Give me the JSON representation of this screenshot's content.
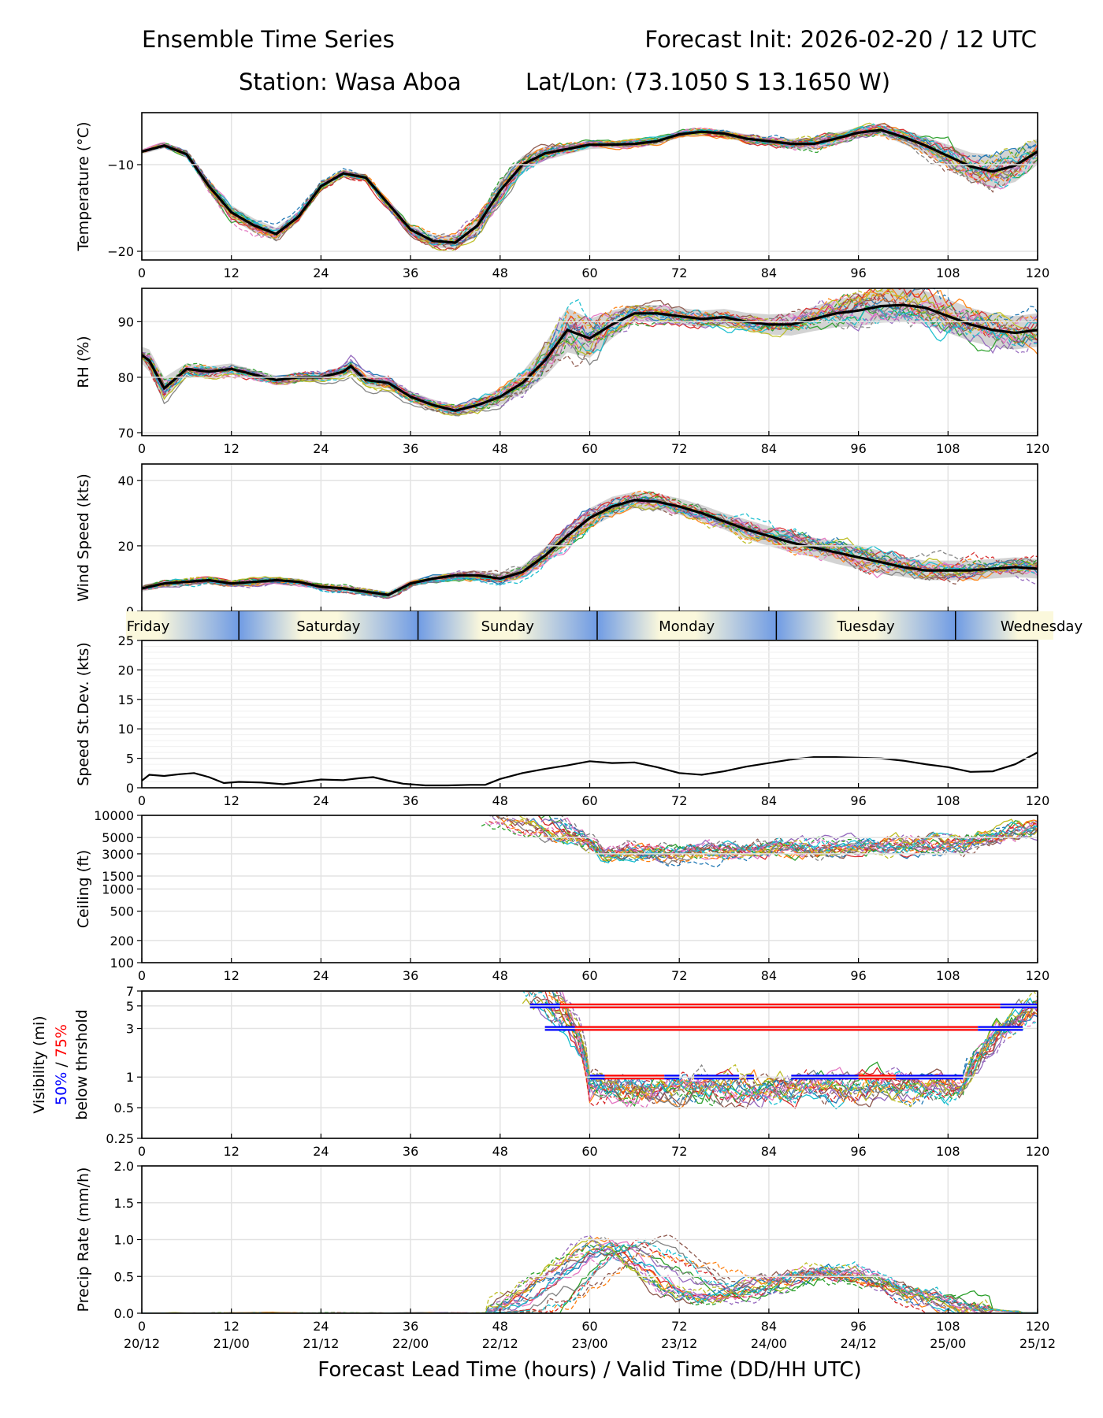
{
  "header": {
    "title_left": "Ensemble Time Series",
    "title_right": "Forecast Init: 2026-02-20 / 12 UTC",
    "station_line": "Station: Wasa Aboa",
    "latlon_line": "Lat/Lon: (73.1050 S 13.1650 W)"
  },
  "x_axis": {
    "lead_ticks": [
      0,
      12,
      24,
      36,
      48,
      60,
      72,
      84,
      96,
      108,
      120
    ],
    "valid_time_labels": [
      "20/12",
      "21/00",
      "21/12",
      "22/00",
      "22/12",
      "23/00",
      "23/12",
      "24/00",
      "24/12",
      "25/00",
      "25/12"
    ],
    "xlabel": "Forecast Lead Time (hours) / Valid Time (DD/HH UTC)",
    "xlim": [
      0,
      120
    ]
  },
  "day_bar": {
    "days": [
      "Friday",
      "Saturday",
      "Sunday",
      "Monday",
      "Tuesday",
      "Wednesday"
    ],
    "day_boundaries_hours": [
      13,
      37,
      61,
      85,
      109
    ],
    "colors": {
      "light": "#fbf8dc",
      "dark": "#6f9be4"
    }
  },
  "colors": {
    "members": [
      "#1f77b4",
      "#ff7f0e",
      "#2ca02c",
      "#d62728",
      "#9467bd",
      "#8c564b",
      "#e377c2",
      "#7f7f7f",
      "#bcbd22",
      "#17becf"
    ],
    "mean": "#000000",
    "spread": "#c8c8c8",
    "vis50": "#0000ff",
    "vis75": "#ff0000"
  },
  "chart_data": [
    {
      "id": "temperature",
      "type": "line",
      "ylabel": "Temperature (°C)",
      "ylim": [
        -21,
        -4
      ],
      "yticks": [
        -20,
        -10
      ],
      "ytick_labels": [
        "−20",
        "−10"
      ],
      "grid": true,
      "ensemble_members": 20,
      "mean": {
        "x": [
          0,
          3,
          6,
          9,
          12,
          15,
          18,
          21,
          24,
          27,
          30,
          33,
          36,
          39,
          42,
          45,
          48,
          51,
          54,
          57,
          60,
          63,
          66,
          69,
          72,
          75,
          78,
          81,
          84,
          87,
          90,
          93,
          96,
          99,
          102,
          105,
          108,
          111,
          114,
          117,
          120
        ],
        "y": [
          -8.5,
          -7.8,
          -8.8,
          -12.5,
          -15.5,
          -17,
          -18,
          -16,
          -12.5,
          -11,
          -11.5,
          -14.5,
          -17.5,
          -18.8,
          -19,
          -17,
          -13,
          -10,
          -8.7,
          -8.2,
          -7.7,
          -7.7,
          -7.6,
          -7.3,
          -6.5,
          -6.2,
          -6.4,
          -7,
          -7.3,
          -7.6,
          -7.6,
          -7,
          -6.3,
          -6,
          -6.8,
          -7.8,
          -9,
          -10.2,
          -10.8,
          -10.1,
          -8.5
        ]
      },
      "spread_halfwidth": [
        0.3,
        0.3,
        0.4,
        0.6,
        0.8,
        0.8,
        0.7,
        0.6,
        0.5,
        0.4,
        0.4,
        0.5,
        0.6,
        0.7,
        0.8,
        1.0,
        1.2,
        1.0,
        0.8,
        0.6,
        0.5,
        0.4,
        0.4,
        0.4,
        0.4,
        0.4,
        0.4,
        0.5,
        0.5,
        0.6,
        0.7,
        0.7,
        0.6,
        0.6,
        0.8,
        1.0,
        1.3,
        1.6,
        1.9,
        1.9,
        1.5
      ]
    },
    {
      "id": "rh",
      "type": "line",
      "ylabel": "RH (%)",
      "ylim": [
        69.5,
        96
      ],
      "yticks": [
        70,
        80,
        90
      ],
      "ytick_labels": [
        "70",
        "80",
        "90"
      ],
      "grid": true,
      "ensemble_members": 20,
      "mean": {
        "x": [
          0,
          1,
          3,
          6,
          9,
          12,
          15,
          18,
          21,
          24,
          27,
          28,
          30,
          33,
          36,
          39,
          42,
          45,
          48,
          51,
          54,
          57,
          60,
          63,
          66,
          69,
          72,
          75,
          78,
          81,
          84,
          87,
          90,
          93,
          96,
          99,
          102,
          105,
          108,
          111,
          114,
          117,
          120
        ],
        "y": [
          84,
          83,
          78,
          81.5,
          81,
          81.5,
          80.5,
          79.5,
          80,
          80,
          81,
          82,
          79.5,
          79,
          76.5,
          75,
          74,
          75,
          76.5,
          79,
          83,
          88.5,
          87,
          89.5,
          91.5,
          91.5,
          91,
          90.5,
          90.8,
          90,
          89.5,
          89.5,
          90.5,
          91.5,
          92,
          92.8,
          93,
          92.5,
          91,
          89.5,
          88.5,
          88,
          88.5
        ]
      },
      "spread_halfwidth": [
        1.5,
        2,
        2,
        1,
        1,
        1,
        0.8,
        0.8,
        0.8,
        0.8,
        1,
        1.2,
        1,
        1,
        1,
        1,
        1,
        1.2,
        1.5,
        2,
        3,
        4,
        3.5,
        2.5,
        1.5,
        1.5,
        1.5,
        1.5,
        1.5,
        1.6,
        1.8,
        2,
        2.2,
        2.5,
        2.8,
        3,
        3,
        3,
        3,
        3,
        3,
        3,
        3
      ]
    },
    {
      "id": "wind_speed",
      "type": "line",
      "ylabel": "Wind Speed (kts)",
      "ylim": [
        0,
        45
      ],
      "yticks": [
        0,
        20,
        40
      ],
      "ytick_labels": [
        "0",
        "20",
        "40"
      ],
      "grid": true,
      "ensemble_members": 20,
      "mean": {
        "x": [
          0,
          3,
          6,
          9,
          12,
          15,
          18,
          21,
          24,
          27,
          30,
          33,
          36,
          39,
          42,
          45,
          48,
          51,
          54,
          57,
          60,
          63,
          66,
          69,
          72,
          75,
          78,
          81,
          84,
          87,
          90,
          93,
          96,
          99,
          102,
          105,
          108,
          111,
          114,
          117,
          120
        ],
        "y": [
          7,
          8.5,
          9,
          9.5,
          8.5,
          9,
          9.5,
          9,
          7.5,
          7,
          6,
          5,
          8.5,
          10,
          11,
          11,
          10,
          12,
          17,
          23,
          28.5,
          32,
          34,
          33.5,
          32,
          30,
          27.5,
          25,
          23,
          21,
          19.5,
          18,
          16.5,
          15,
          13.5,
          12.5,
          12.5,
          12.5,
          13,
          13.5,
          13
        ]
      },
      "spread_halfwidth": [
        1,
        1,
        1,
        1,
        1,
        1,
        1,
        1,
        1,
        1,
        1,
        1,
        1,
        1,
        1,
        1.5,
        1.5,
        2,
        2.5,
        3,
        3,
        3,
        2.5,
        2.5,
        2.5,
        2.5,
        2.5,
        3,
        3,
        3,
        3,
        3.5,
        3.5,
        3.5,
        3,
        3,
        3,
        3,
        3,
        3,
        3
      ]
    },
    {
      "id": "speed_stdev",
      "type": "line",
      "ylabel": "Speed St.Dev. (kts)",
      "ylim": [
        0,
        25
      ],
      "yticks": [
        0,
        5,
        10,
        15,
        20,
        25
      ],
      "ytick_labels": [
        "0",
        "5",
        "10",
        "15",
        "20",
        "25"
      ],
      "grid": true,
      "series": {
        "x": [
          0,
          1,
          3,
          5,
          7,
          9,
          11,
          13,
          16,
          19,
          21,
          24,
          27,
          29,
          31,
          33,
          35,
          38,
          41,
          44,
          46,
          48,
          51,
          54,
          57,
          60,
          63,
          66,
          69,
          72,
          75,
          78,
          81,
          84,
          87,
          90,
          93,
          96,
          99,
          102,
          105,
          108,
          111,
          114,
          117,
          120
        ],
        "y": [
          1.2,
          2.2,
          2.0,
          2.3,
          2.5,
          1.8,
          0.8,
          1.0,
          0.9,
          0.6,
          0.9,
          1.4,
          1.3,
          1.6,
          1.8,
          1.2,
          0.7,
          0.4,
          0.4,
          0.5,
          0.5,
          1.5,
          2.5,
          3.2,
          3.8,
          4.5,
          4.2,
          4.3,
          3.5,
          2.5,
          2.2,
          2.8,
          3.6,
          4.2,
          4.8,
          5.2,
          5.2,
          5.1,
          5.0,
          4.6,
          4.0,
          3.5,
          2.7,
          2.8,
          4.0,
          6.0
        ]
      }
    },
    {
      "id": "ceiling",
      "type": "line",
      "ylabel": "Ceiling (ft)",
      "yscale": "log",
      "ylim": [
        100,
        10000
      ],
      "yticks": [
        100,
        200,
        500,
        1000,
        1500,
        3000,
        5000,
        10000
      ],
      "ytick_labels": [
        "100",
        "200",
        "500",
        "1000",
        "1500",
        "3000",
        "5000",
        "10000"
      ],
      "grid": true,
      "ensemble_members": 20
    },
    {
      "id": "visibility",
      "type": "line",
      "ylabel": "Visibility (mi)",
      "ylabel_line2_parts": [
        "50%",
        " / ",
        "75%"
      ],
      "ylabel_line3": "below thrshold",
      "yscale": "log",
      "ylim": [
        0.25,
        7
      ],
      "yticks": [
        0.25,
        0.5,
        1,
        3,
        5,
        7
      ],
      "ytick_labels": [
        "0.25",
        "0.5",
        "1",
        "3",
        "5",
        "7"
      ],
      "grid": true,
      "ensemble_members": 20,
      "threshold_bars": [
        {
          "level": 5,
          "blue": [
            [
              52,
              56
            ],
            [
              115,
              120
            ]
          ],
          "red": [
            [
              56,
              115
            ]
          ]
        },
        {
          "level": 3,
          "blue": [
            [
              54,
              58
            ],
            [
              112,
              118
            ]
          ],
          "red": [
            [
              58,
              112
            ]
          ]
        },
        {
          "level": 1,
          "blue": [
            [
              60,
              62
            ],
            [
              70,
              72
            ],
            [
              74,
              80
            ],
            [
              81,
              82
            ],
            [
              87,
              96
            ],
            [
              101,
              110
            ]
          ],
          "red": [
            [
              62,
              70
            ],
            [
              96,
              101
            ]
          ]
        }
      ]
    },
    {
      "id": "precip",
      "type": "line",
      "ylabel": "Precip Rate (mm/h)",
      "ylim": [
        0,
        2.0
      ],
      "yticks": [
        0.0,
        0.5,
        1.0,
        1.5,
        2.0
      ],
      "ytick_labels": [
        "0.0",
        "0.5",
        "1.0",
        "1.5",
        "2.0"
      ],
      "grid": true,
      "ensemble_members": 20
    }
  ]
}
